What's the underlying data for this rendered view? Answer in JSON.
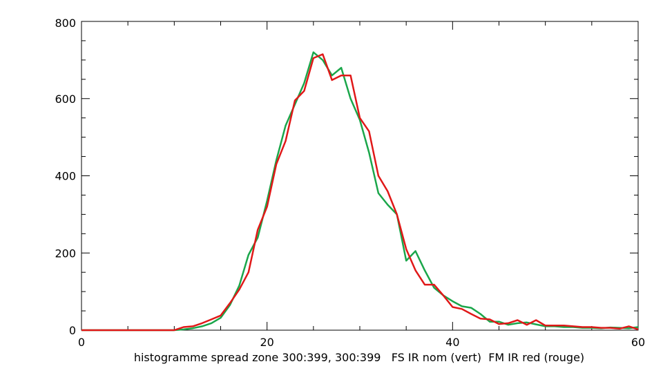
{
  "chart_data": {
    "type": "line",
    "xlabel": "histogramme spread zone 300:399, 300:399   FS IR nom (vert)  FM IR red (rouge)",
    "ylabel": "",
    "title": "",
    "xlim": [
      0,
      60
    ],
    "ylim": [
      0,
      800
    ],
    "x_ticks": [
      "0",
      "20",
      "40",
      "60"
    ],
    "y_ticks": [
      "0",
      "200",
      "400",
      "600",
      "800"
    ],
    "grid": false,
    "series": [
      {
        "color": "#1aa64a",
        "x": [
          0,
          1,
          2,
          3,
          4,
          5,
          6,
          7,
          8,
          9,
          10,
          11,
          12,
          13,
          14,
          15,
          16,
          17,
          18,
          19,
          20,
          21,
          22,
          23,
          24,
          25,
          26,
          27,
          28,
          29,
          30,
          31,
          32,
          33,
          34,
          35,
          36,
          37,
          38,
          39,
          40,
          41,
          42,
          43,
          44,
          45,
          46,
          47,
          48,
          49,
          50,
          51,
          52,
          53,
          54,
          55,
          56,
          57,
          58,
          59,
          60
        ],
        "y": [
          0,
          0,
          0,
          0,
          0,
          0,
          0,
          0,
          0,
          0,
          0,
          2,
          5,
          10,
          18,
          32,
          65,
          115,
          195,
          240,
          335,
          440,
          530,
          585,
          640,
          720,
          700,
          660,
          680,
          600,
          545,
          460,
          355,
          325,
          300,
          180,
          205,
          155,
          110,
          90,
          75,
          62,
          58,
          42,
          22,
          22,
          14,
          18,
          20,
          15,
          10,
          10,
          8,
          8,
          6,
          6,
          5,
          7,
          6,
          5,
          8
        ]
      },
      {
        "color": "#e01818",
        "x": [
          0,
          1,
          2,
          3,
          4,
          5,
          6,
          7,
          8,
          9,
          10,
          11,
          12,
          13,
          14,
          15,
          16,
          17,
          18,
          19,
          20,
          21,
          22,
          23,
          24,
          25,
          26,
          27,
          28,
          29,
          30,
          31,
          32,
          33,
          34,
          35,
          36,
          37,
          38,
          39,
          40,
          41,
          42,
          43,
          44,
          45,
          46,
          47,
          48,
          49,
          50,
          51,
          52,
          53,
          54,
          55,
          56,
          57,
          58,
          59,
          60
        ],
        "y": [
          0,
          0,
          0,
          0,
          0,
          0,
          0,
          0,
          0,
          0,
          0,
          8,
          10,
          18,
          28,
          38,
          70,
          105,
          150,
          260,
          320,
          430,
          490,
          595,
          620,
          705,
          715,
          648,
          660,
          660,
          550,
          515,
          400,
          360,
          300,
          210,
          155,
          118,
          118,
          90,
          60,
          55,
          42,
          30,
          28,
          16,
          18,
          26,
          14,
          26,
          12,
          12,
          12,
          10,
          8,
          8,
          6,
          6,
          4,
          10,
          2
        ]
      }
    ]
  }
}
